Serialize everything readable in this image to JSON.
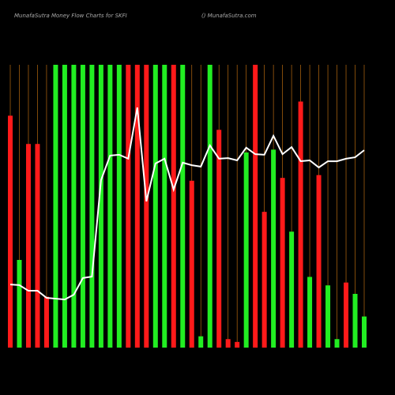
{
  "chart_data": {
    "type": "bar",
    "title": "MunafaSutra Money Flow Charts for SKFI",
    "subtitle": "() MunafaSutra.com",
    "categories": [
      null,
      null,
      null,
      null,
      null,
      null,
      null,
      null,
      null,
      null,
      null,
      null,
      null,
      null,
      null,
      null,
      null,
      null,
      null,
      null,
      null,
      null,
      null,
      null,
      null,
      null,
      null,
      null,
      null,
      null,
      null,
      null,
      null,
      null,
      null,
      null,
      null,
      null,
      null,
      null
    ],
    "values": [
      82,
      31,
      72,
      72,
      18,
      100,
      100,
      100,
      100,
      100,
      100,
      100,
      100,
      100,
      100,
      100,
      100,
      100,
      100,
      100,
      59,
      4,
      100,
      77,
      3,
      2,
      69,
      100,
      48,
      70,
      60,
      41,
      87,
      25,
      61,
      22,
      3,
      23,
      19,
      11
    ],
    "colors": [
      "#ff1a1a",
      "#22ee22",
      "#ff1a1a",
      "#ff1a1a",
      "#ff1a1a",
      "#22ee22",
      "#22ee22",
      "#22ee22",
      "#22ee22",
      "#22ee22",
      "#22ee22",
      "#22ee22",
      "#22ee22",
      "#ff1a1a",
      "#ff1a1a",
      "#ff1a1a",
      "#22ee22",
      "#22ee22",
      "#ff1a1a",
      "#22ee22",
      "#ff1a1a",
      "#22ee22",
      "#22ee22",
      "#ff1a1a",
      "#ff1a1a",
      "#ff1a1a",
      "#22ee22",
      "#ff1a1a",
      "#ff1a1a",
      "#22ee22",
      "#ff1a1a",
      "#22ee22",
      "#ff1a1a",
      "#22ee22",
      "#ff1a1a",
      "#22ee22",
      "#22ee22",
      "#ff1a1a",
      "#22ee22",
      "#22ee22"
    ],
    "line": {
      "color": "#ffffff",
      "values": [
        22.3,
        22.1,
        20.1,
        20.1,
        17.6,
        17.3,
        17.0,
        18.7,
        24.6,
        25.1,
        59.2,
        67.9,
        68.2,
        66.8,
        84.9,
        51.7,
        65.1,
        66.8,
        55.9,
        65.4,
        64.5,
        64.0,
        71.5,
        66.8,
        67.0,
        66.2,
        70.7,
        68.4,
        68.2,
        74.9,
        68.4,
        70.9,
        65.9,
        66.2,
        63.7,
        65.9,
        65.9,
        66.8,
        67.3,
        69.8
      ]
    },
    "ylim": [
      0,
      100
    ],
    "grid": true,
    "grid_color": "#b86a10"
  }
}
